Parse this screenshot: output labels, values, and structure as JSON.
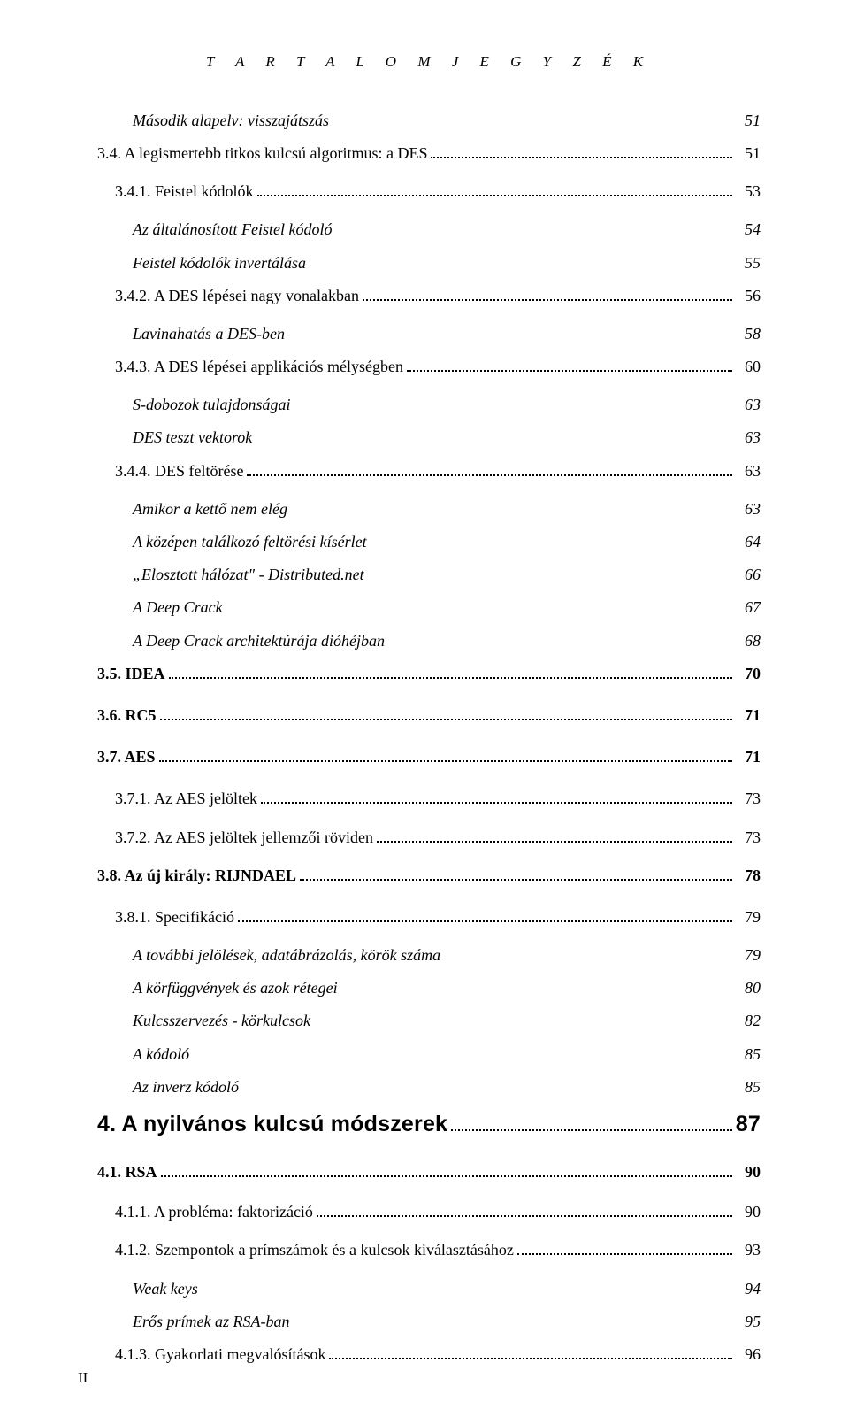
{
  "running_head": "T A R T A L O M J E G Y Z É K",
  "page_number": "II",
  "entries": [
    {
      "cls": "l1",
      "label": "Második alapelv: visszajátszás",
      "page": "51",
      "leader": false
    },
    {
      "cls": "l2",
      "label": "3.4. A legismertebb titkos kulcsú algoritmus: a DES",
      "page": "51",
      "leader": true
    },
    {
      "cls": "l3",
      "label": "3.4.1. Feistel kódolók",
      "page": "53",
      "leader": true
    },
    {
      "cls": "l4",
      "label": "Az általánosított Feistel kódoló",
      "page": "54",
      "leader": false
    },
    {
      "cls": "l4",
      "label": "Feistel kódolók invertálása",
      "page": "55",
      "leader": false
    },
    {
      "cls": "l3",
      "label": "3.4.2. A DES lépései nagy vonalakban",
      "page": "56",
      "leader": true
    },
    {
      "cls": "l4",
      "label": "Lavinahatás a DES-ben",
      "page": "58",
      "leader": false
    },
    {
      "cls": "l3",
      "label": "3.4.3. A DES lépései applikációs mélységben",
      "page": "60",
      "leader": true
    },
    {
      "cls": "l4",
      "label": "S-dobozok tulajdonságai",
      "page": "63",
      "leader": false
    },
    {
      "cls": "l4",
      "label": "DES teszt vektorok",
      "page": "63",
      "leader": false
    },
    {
      "cls": "l3",
      "label": "3.4.4. DES feltörése",
      "page": "63",
      "leader": true
    },
    {
      "cls": "l4",
      "label": "Amikor a kettő nem elég",
      "page": "63",
      "leader": false
    },
    {
      "cls": "l4",
      "label": "A középen találkozó feltörési kísérlet",
      "page": "64",
      "leader": false
    },
    {
      "cls": "l4",
      "label": "„Elosztott hálózat\" - Distributed.net",
      "page": "66",
      "leader": false
    },
    {
      "cls": "l4",
      "label": "A Deep Crack",
      "page": "67",
      "leader": false
    },
    {
      "cls": "l4",
      "label": "A Deep Crack architektúrája dióhéjban",
      "page": "68",
      "leader": false
    },
    {
      "cls": "sec-major",
      "label": "3.5. IDEA",
      "page": "70",
      "leader": true
    },
    {
      "cls": "sec-major",
      "label": "3.6. RC5",
      "page": "71",
      "leader": true
    },
    {
      "cls": "sec-major",
      "label": "3.7. AES",
      "page": "71",
      "leader": true
    },
    {
      "cls": "l3",
      "label": "3.7.1. Az AES jelöltek",
      "page": "73",
      "leader": true
    },
    {
      "cls": "l3",
      "label": "3.7.2. Az AES jelöltek jellemzői röviden",
      "page": "73",
      "leader": true
    },
    {
      "cls": "sec-major",
      "label": "3.8. Az új király: RIJNDAEL",
      "page": "78",
      "leader": true
    },
    {
      "cls": "l3",
      "label": "3.8.1. Specifikáció",
      "page": "79",
      "leader": true
    },
    {
      "cls": "l4",
      "label": "A további jelölések, adatábrázolás, körök száma",
      "page": "79",
      "leader": false
    },
    {
      "cls": "l4",
      "label": "A körfüggvények és azok rétegei",
      "page": "80",
      "leader": false
    },
    {
      "cls": "l4",
      "label": "Kulcsszervezés - körkulcsok",
      "page": "82",
      "leader": false
    },
    {
      "cls": "l4",
      "label": "A kódoló",
      "page": "85",
      "leader": false
    },
    {
      "cls": "l4",
      "label": "Az inverz kódoló",
      "page": "85",
      "leader": false
    },
    {
      "cls": "sec-top",
      "label": "4. A nyilvános kulcsú módszerek",
      "page": "87",
      "leader": true
    },
    {
      "cls": "sec-mid",
      "label": "4.1. RSA",
      "page": "90",
      "leader": true
    },
    {
      "cls": "l3",
      "label": "4.1.1. A probléma: faktorizáció",
      "page": "90",
      "leader": true
    },
    {
      "cls": "l3",
      "label": "4.1.2. Szempontok a prímszámok és a kulcsok kiválasztásához",
      "page": "93",
      "leader": true
    },
    {
      "cls": "l4",
      "label": "Weak keys",
      "page": "94",
      "leader": false
    },
    {
      "cls": "l4",
      "label": "Erős prímek az RSA-ban",
      "page": "95",
      "leader": false
    },
    {
      "cls": "l3",
      "label": "4.1.3. Gyakorlati megvalósítások",
      "page": "96",
      "leader": true
    }
  ]
}
